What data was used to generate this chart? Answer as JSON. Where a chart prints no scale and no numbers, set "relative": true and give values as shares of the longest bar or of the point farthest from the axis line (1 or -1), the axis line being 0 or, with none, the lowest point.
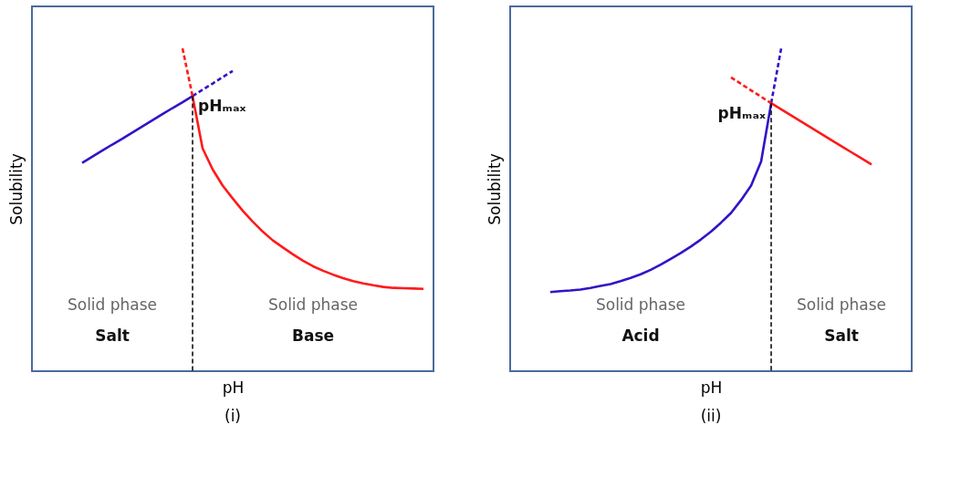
{
  "chart_data": [
    {
      "type": "line",
      "title": "(i)",
      "xlabel": "pH",
      "ylabel": "Solubility",
      "relative": true,
      "marker": "none",
      "line_style": "solid",
      "categories": [
        null,
        null,
        null,
        null,
        null,
        null,
        null,
        null,
        null,
        null,
        null,
        null,
        null,
        null,
        null,
        null,
        null,
        null,
        null,
        null,
        null,
        null,
        null,
        null,
        null,
        null,
        null,
        null,
        null,
        null,
        null,
        null,
        null,
        null,
        null,
        null,
        null,
        null,
        null,
        null,
        null
      ],
      "series": [
        {
          "color": "#3312c8",
          "values": [
            null,
            null,
            null,
            null,
            null,
            0.645,
            0.664,
            0.683,
            0.702,
            0.72,
            0.739,
            0.758,
            0.777,
            0.796,
            0.815,
            0.833,
            0.852,
            null,
            null,
            null,
            null,
            null,
            null,
            null,
            null,
            null,
            null,
            null,
            null,
            null,
            null,
            null,
            null,
            null,
            null,
            null,
            null,
            null,
            null,
            null,
            null
          ]
        },
        {
          "color": "#3312c8",
          "line_style": "dashed",
          "values": [
            null,
            null,
            null,
            null,
            null,
            null,
            null,
            null,
            null,
            null,
            null,
            null,
            null,
            null,
            null,
            null,
            0.852,
            0.872,
            0.891,
            0.911,
            0.93,
            null,
            null,
            null,
            null,
            null,
            null,
            null,
            null,
            null,
            null,
            null,
            null,
            null,
            null,
            null,
            null,
            null,
            null,
            null,
            null
          ]
        },
        {
          "color": "#ff1a1a",
          "line_style": "dashed",
          "values": [
            null,
            null,
            null,
            null,
            null,
            null,
            null,
            null,
            null,
            null,
            null,
            null,
            null,
            null,
            null,
            1.0,
            0.852,
            null,
            null,
            null,
            null,
            null,
            null,
            null,
            null,
            null,
            null,
            null,
            null,
            null,
            null,
            null,
            null,
            null,
            null,
            null,
            null,
            null,
            null,
            null,
            null
          ]
        },
        {
          "color": "#ff1a1a",
          "values": [
            null,
            null,
            null,
            null,
            null,
            null,
            null,
            null,
            null,
            null,
            null,
            null,
            null,
            null,
            null,
            null,
            0.852,
            0.69,
            0.625,
            0.575,
            0.535,
            0.497,
            0.463,
            0.432,
            0.405,
            0.383,
            0.362,
            0.342,
            0.325,
            0.311,
            0.299,
            0.288,
            0.279,
            0.272,
            0.266,
            0.261,
            0.258,
            0.257,
            0.256,
            0.255,
            null
          ]
        }
      ],
      "annotations": [
        "pHₘₐₓ",
        "Solid phase",
        "Salt",
        "Solid phase",
        "Base"
      ]
    },
    {
      "type": "line",
      "title": "(ii)",
      "xlabel": "pH",
      "ylabel": "Solubility",
      "relative": true,
      "marker": "none",
      "line_style": "solid",
      "categories": [
        null,
        null,
        null,
        null,
        null,
        null,
        null,
        null,
        null,
        null,
        null,
        null,
        null,
        null,
        null,
        null,
        null,
        null,
        null,
        null,
        null,
        null,
        null,
        null,
        null,
        null,
        null,
        null,
        null,
        null,
        null,
        null,
        null,
        null,
        null,
        null,
        null,
        null,
        null,
        null,
        null
      ],
      "series": [
        {
          "color": "#3312c8",
          "values": [
            null,
            null,
            null,
            null,
            0.245,
            0.248,
            0.25,
            0.253,
            0.258,
            0.264,
            0.27,
            0.279,
            0.289,
            0.3,
            0.314,
            0.33,
            0.348,
            0.366,
            0.386,
            0.408,
            0.432,
            0.46,
            0.49,
            0.53,
            0.575,
            0.65,
            0.83,
            null,
            null,
            null,
            null,
            null,
            null,
            null,
            null,
            null,
            null,
            null,
            null,
            null,
            null
          ]
        },
        {
          "color": "#3312c8",
          "line_style": "dashed",
          "values": [
            null,
            null,
            null,
            null,
            null,
            null,
            null,
            null,
            null,
            null,
            null,
            null,
            null,
            null,
            null,
            null,
            null,
            null,
            null,
            null,
            null,
            null,
            null,
            null,
            null,
            null,
            0.83,
            1.0,
            null,
            null,
            null,
            null,
            null,
            null,
            null,
            null,
            null,
            null,
            null,
            null,
            null
          ]
        },
        {
          "color": "#ff1a1a",
          "line_style": "dashed",
          "values": [
            null,
            null,
            null,
            null,
            null,
            null,
            null,
            null,
            null,
            null,
            null,
            null,
            null,
            null,
            null,
            null,
            null,
            null,
            null,
            null,
            null,
            null,
            0.91,
            0.89,
            0.87,
            0.85,
            0.83,
            null,
            null,
            null,
            null,
            null,
            null,
            null,
            null,
            null,
            null,
            null,
            null,
            null,
            null
          ]
        },
        {
          "color": "#ff1a1a",
          "values": [
            null,
            null,
            null,
            null,
            null,
            null,
            null,
            null,
            null,
            null,
            null,
            null,
            null,
            null,
            null,
            null,
            null,
            null,
            null,
            null,
            null,
            null,
            null,
            null,
            null,
            null,
            0.83,
            0.811,
            0.792,
            0.773,
            0.754,
            0.735,
            0.716,
            0.697,
            0.678,
            0.659,
            0.64,
            null,
            null,
            null,
            null
          ]
        }
      ],
      "annotations": [
        "pHₘₐₓ",
        "Solid phase",
        "Acid",
        "Solid phase",
        "Salt"
      ]
    }
  ]
}
